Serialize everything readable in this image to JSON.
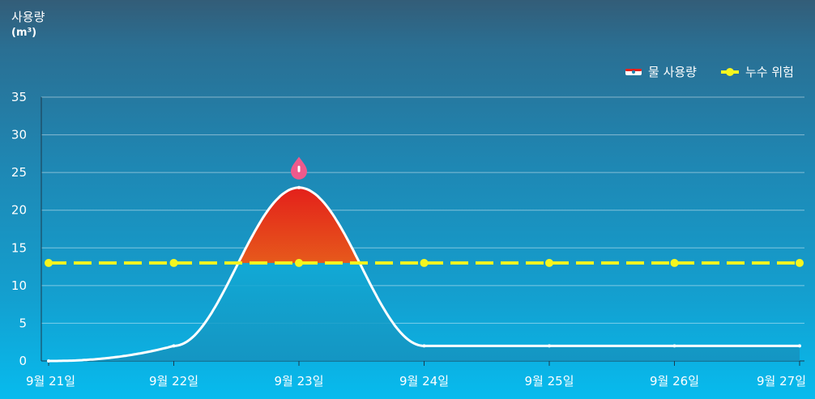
{
  "chart_data": {
    "type": "area",
    "title": "사용량",
    "unit": "(m³)",
    "x": [
      "9월 21일",
      "9월 22일",
      "9월 23일",
      "9월 24일",
      "9월 25일",
      "9월 26일",
      "9월 27일"
    ],
    "ylim": [
      0,
      35
    ],
    "yticks": [
      "0",
      "5",
      "10",
      "15",
      "20",
      "25",
      "30",
      "35"
    ],
    "grid": true,
    "legend_position": "top-right",
    "series": [
      {
        "name": "물 사용량",
        "values": [
          0,
          2,
          23,
          2,
          2,
          2,
          2
        ],
        "color": "#ffffff"
      },
      {
        "name": "누수 위험",
        "values": [
          13,
          13,
          13,
          13,
          13,
          13,
          13
        ],
        "color": "#f5f51e"
      }
    ],
    "peak_marker": {
      "x": "9월 23일",
      "icon": "water-drop-icon",
      "color": "#ee5a8c"
    },
    "above_threshold_colors": [
      "#e4201b",
      "#e8a41c"
    ]
  }
}
